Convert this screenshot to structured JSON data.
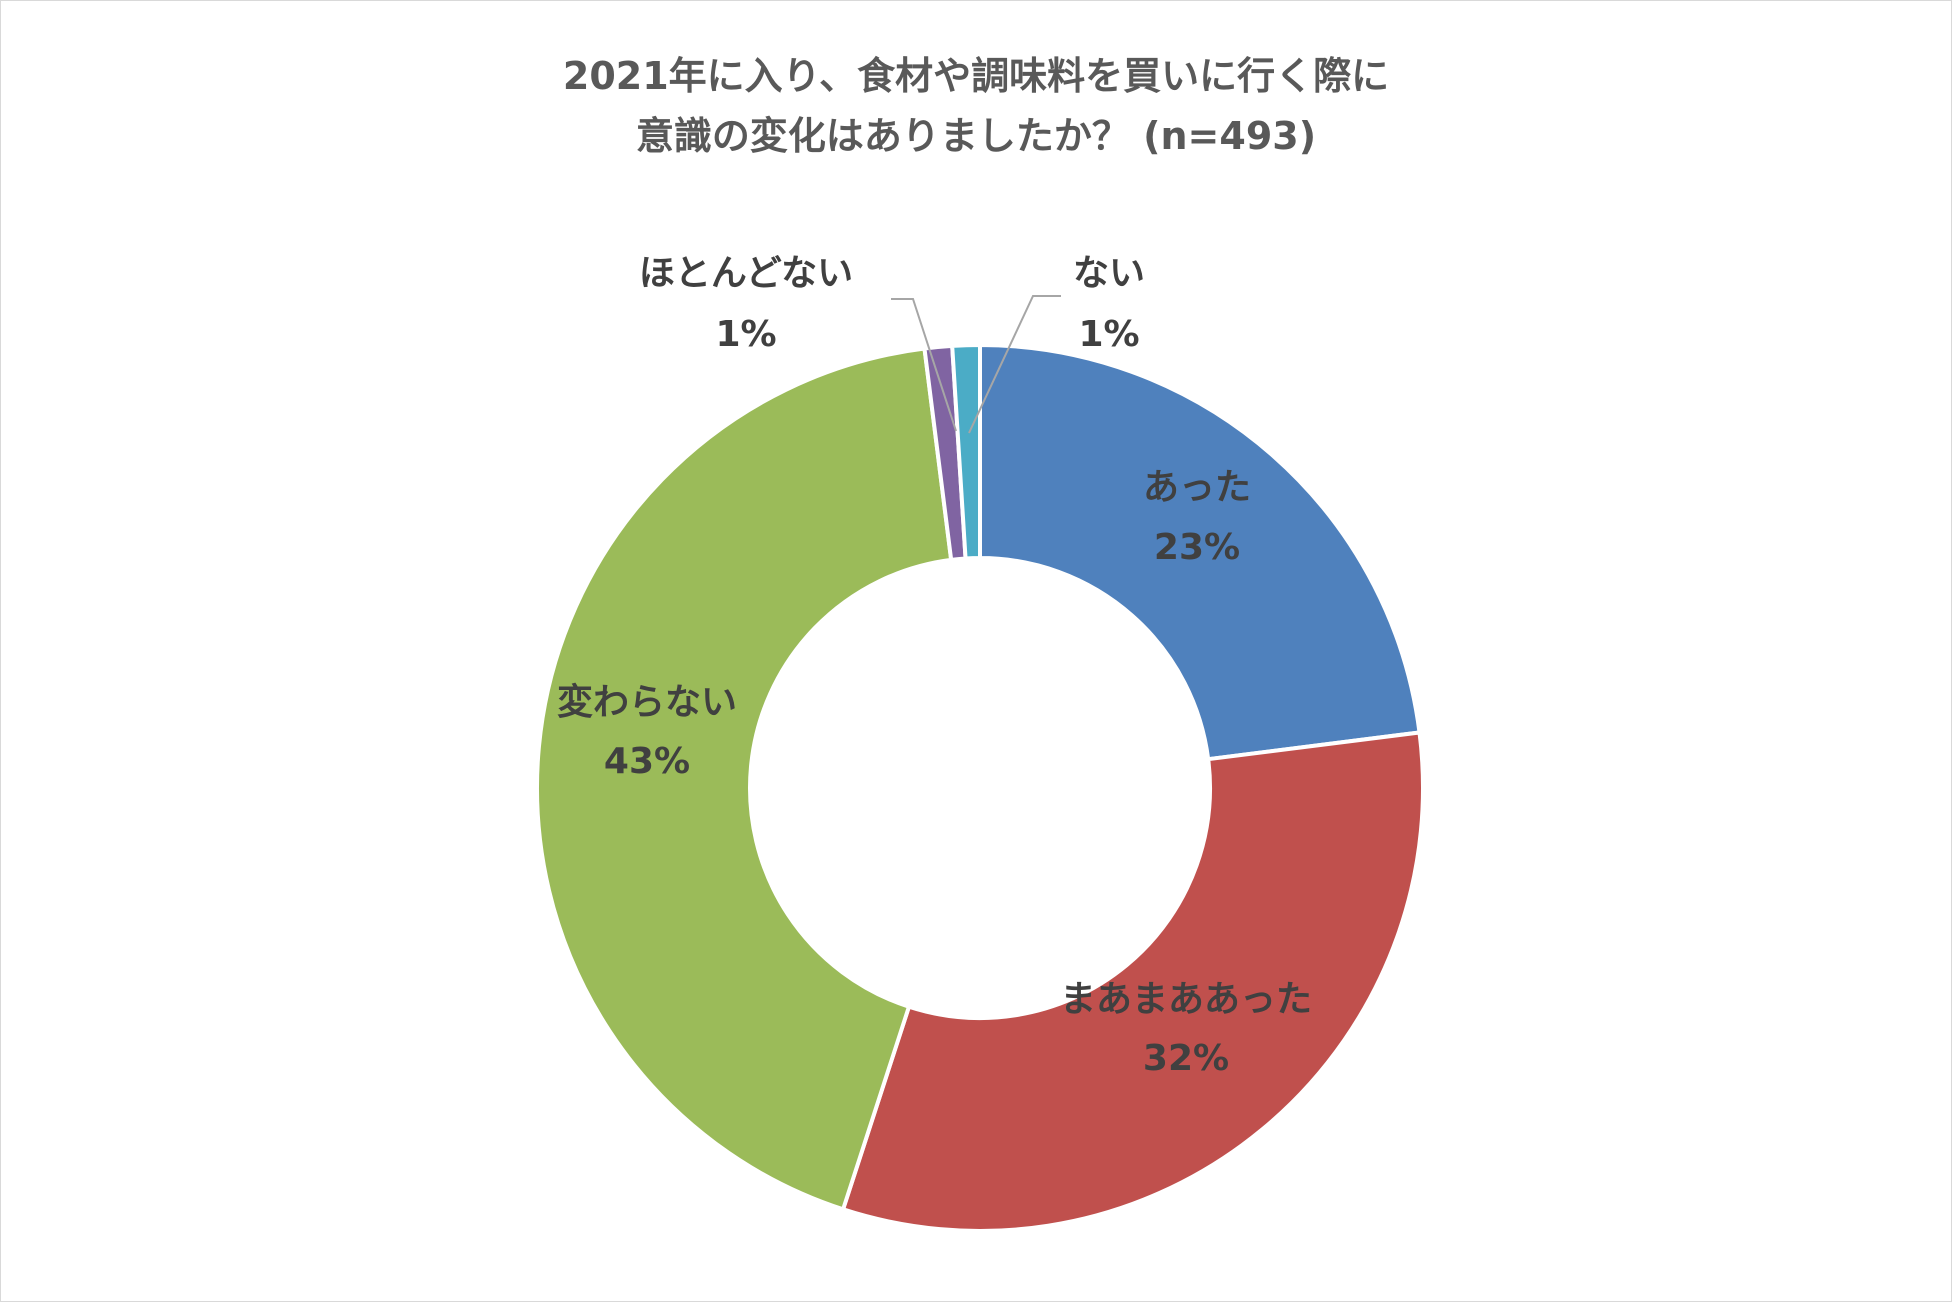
{
  "chart_data": {
    "type": "pie",
    "variant": "doughnut",
    "title_lines": [
      "2021年に入り、食材や調味料を買いに行く際に",
      "意識の変化はありましたか？ (n=493)"
    ],
    "legend": "none",
    "series": [
      {
        "name": "あった",
        "value": 23,
        "value_label": "23%",
        "color": "#4f81bd"
      },
      {
        "name": "まあまああった",
        "value": 32,
        "value_label": "32%",
        "color": "#c0504d"
      },
      {
        "name": "変わらない",
        "value": 43,
        "value_label": "43%",
        "color": "#9bbb59"
      },
      {
        "name": "ほとんどない",
        "value": 1,
        "value_label": "1%",
        "color": "#8064a2"
      },
      {
        "name": "ない",
        "value": 1,
        "value_label": "1%",
        "color": "#4bacc6"
      }
    ]
  }
}
